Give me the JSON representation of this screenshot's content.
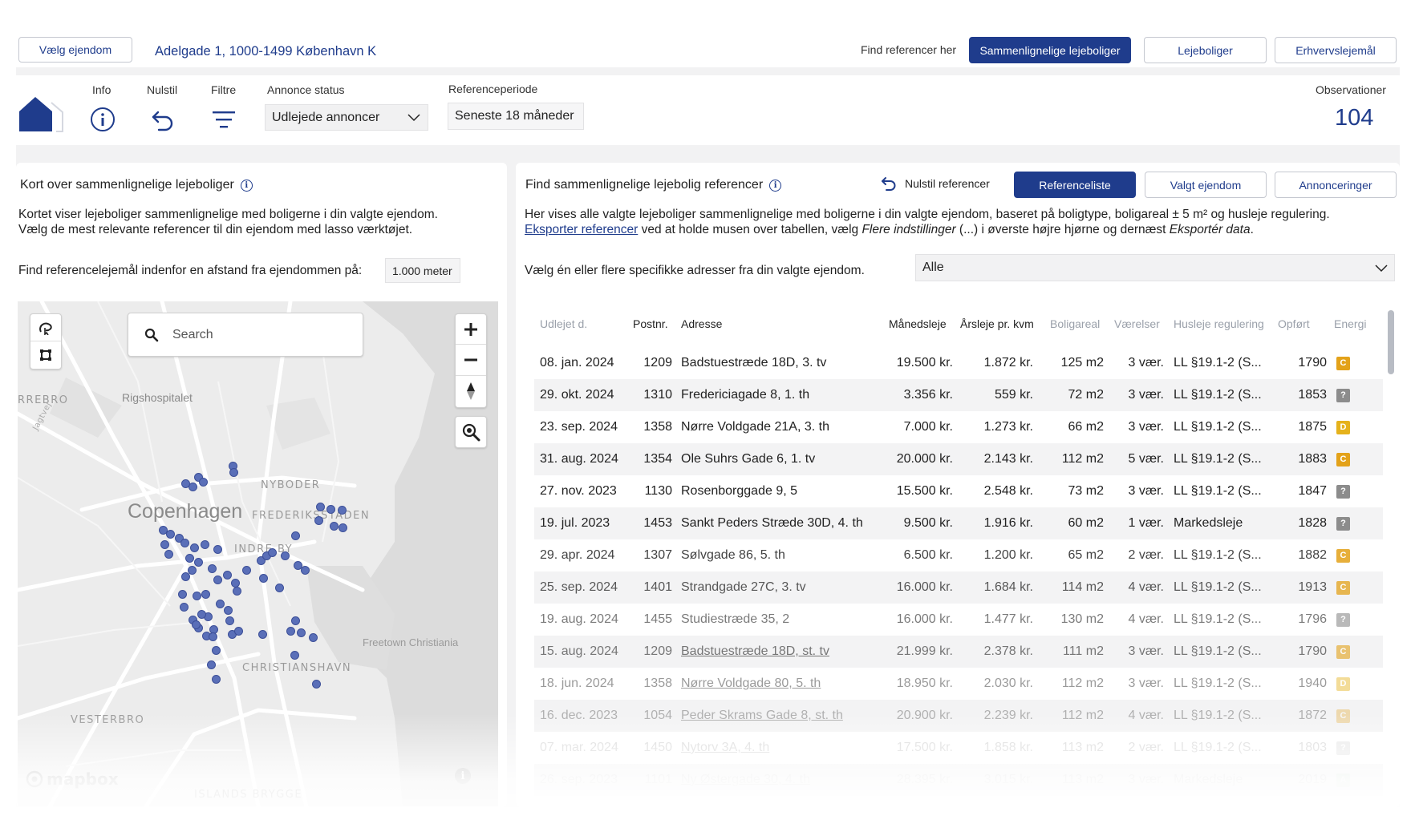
{
  "header": {
    "choose_property_label": "Vælg ejendom",
    "address": "Adelgade 1, 1000-1499 København K",
    "find_refs_label": "Find referencer her",
    "tabs": [
      "Sammenlignelige lejeboliger",
      "Lejeboliger",
      "Erhvervslejemål"
    ]
  },
  "toolbar": {
    "info_label": "Info",
    "reset_label": "Nulstil",
    "filters_label": "Filtre",
    "ad_status_label": "Annonce status",
    "ad_status_value": "Udlejede annoncer",
    "period_label": "Referenceperiode",
    "period_value": "Seneste 18 måneder",
    "observations_label": "Observationer",
    "observations_value": "104"
  },
  "map_panel": {
    "title": "Kort over sammenlignelige lejeboliger",
    "desc1": "Kortet viser lejeboliger sammenlignelige med boligerne i din valgte ejendom.",
    "desc2": "Vælg de mest relevante referencer til din ejendom med lasso værktøjet.",
    "distance_label": "Find referencelejemål indenfor en afstand fra ejendommen på:",
    "distance_value": "1.000 meter",
    "search_placeholder": "Search",
    "labels": {
      "rigshospitalet": "Rigshospitalet",
      "rrebro": "RREBRO",
      "jagtvej": "Jagtvej",
      "copenhagen": "Copenhagen",
      "nyboder": "NYBODER",
      "frederiksstaden": "FREDERIKSSTADEN",
      "indre_by": "INDRE BY",
      "freetown": "Freetown Christiania",
      "christianshavn": "CHRISTIANSHAVN",
      "vesterbro": "VESTERBRO",
      "islands_brygge": "ISLANDS BRYGGE",
      "mapbox": "mapbox"
    }
  },
  "refs_panel": {
    "title": "Find sammenlignelige lejebolig referencer",
    "reset_refs_label": "Nulstil referencer",
    "tabs": [
      "Referenceliste",
      "Valgt ejendom",
      "Annonceringer"
    ],
    "desc_line1": "Her vises alle valgte lejeboliger sammenlignelige med boligerne i din valgte ejendom, baseret på boligtype, boligareal ± 5 m² og husleje regulering.",
    "export_link": "Eksporter referencer",
    "desc_line2_a": " ved at holde musen over tabellen, vælg ",
    "desc_line2_b": "Flere indstillinger",
    "desc_line2_c": " (...) i øverste højre hjørne og dernæst ",
    "desc_line2_d": "Eksportér data",
    "desc_line2_e": ".",
    "address_filter_label": "Vælg én eller flere specifikke adresser fra din valgte ejendom.",
    "address_filter_value": "Alle"
  },
  "table": {
    "columns": [
      "Udlejet d.",
      "Postnr.",
      "Adresse",
      "Månedsleje",
      "Årsleje pr. kvm",
      "Boligareal",
      "Værelser",
      "Husleje regulering",
      "Opført",
      "Energi"
    ],
    "rows": [
      {
        "date": "08. jan. 2024",
        "zip": "1209",
        "address": "Badstuestræde 18D, 3. tv",
        "monthly": "19.500 kr.",
        "yearly": "1.872 kr.",
        "area": "125 m2",
        "rooms": "3 vær.",
        "reg": "LL §19.1-2 (S...",
        "built": "1790",
        "energy": "C"
      },
      {
        "date": "29. okt. 2024",
        "zip": "1310",
        "address": "Fredericiagade 8, 1. th",
        "monthly": "3.356 kr.",
        "yearly": "559 kr.",
        "area": "72 m2",
        "rooms": "3 vær.",
        "reg": "LL §19.1-2 (S...",
        "built": "1853",
        "energy": "?"
      },
      {
        "date": "23. sep. 2024",
        "zip": "1358",
        "address": "Nørre Voldgade 21A, 3. th",
        "monthly": "7.000 kr.",
        "yearly": "1.273 kr.",
        "area": "66 m2",
        "rooms": "3 vær.",
        "reg": "LL §19.1-2 (S...",
        "built": "1875",
        "energy": "D"
      },
      {
        "date": "31. aug. 2024",
        "zip": "1354",
        "address": "Ole Suhrs Gade 6, 1. tv",
        "monthly": "20.000 kr.",
        "yearly": "2.143 kr.",
        "area": "112 m2",
        "rooms": "5 vær.",
        "reg": "LL §19.1-2 (S...",
        "built": "1883",
        "energy": "C"
      },
      {
        "date": "27. nov. 2023",
        "zip": "1130",
        "address": "Rosenborggade 9, 5",
        "monthly": "15.500 kr.",
        "yearly": "2.548 kr.",
        "area": "73 m2",
        "rooms": "3 vær.",
        "reg": "LL §19.1-2 (S...",
        "built": "1847",
        "energy": "?"
      },
      {
        "date": "19. jul. 2023",
        "zip": "1453",
        "address": "Sankt Peders Stræde 30D, 4. th",
        "monthly": "9.500 kr.",
        "yearly": "1.916 kr.",
        "area": "60 m2",
        "rooms": "1 vær.",
        "reg": "Markedsleje",
        "built": "1828",
        "energy": "?"
      },
      {
        "date": "29. apr. 2024",
        "zip": "1307",
        "address": "Sølvgade 86, 5. th",
        "monthly": "6.500 kr.",
        "yearly": "1.200 kr.",
        "area": "65 m2",
        "rooms": "2 vær.",
        "reg": "LL §19.1-2 (S...",
        "built": "1882",
        "energy": "C"
      },
      {
        "date": "25. sep. 2024",
        "zip": "1401",
        "address": "Strandgade 27C, 3. tv",
        "monthly": "16.000 kr.",
        "yearly": "1.684 kr.",
        "area": "114 m2",
        "rooms": "4 vær.",
        "reg": "LL §19.1-2 (S...",
        "built": "1913",
        "energy": "C"
      },
      {
        "date": "19. aug. 2024",
        "zip": "1455",
        "address": "Studiestræde 35, 2",
        "monthly": "16.000 kr.",
        "yearly": "1.477 kr.",
        "area": "130 m2",
        "rooms": "4 vær.",
        "reg": "LL §19.1-2 (S...",
        "built": "1796",
        "energy": "?"
      },
      {
        "date": "15. aug. 2024",
        "zip": "1209",
        "address": "Badstuestræde 18D, st. tv",
        "monthly": "21.999 kr.",
        "yearly": "2.378 kr.",
        "area": "111 m2",
        "rooms": "3 vær.",
        "reg": "LL §19.1-2 (S...",
        "built": "1790",
        "energy": "C"
      },
      {
        "date": "18. jun. 2024",
        "zip": "1358",
        "address": "Nørre Voldgade 80, 5. th",
        "monthly": "18.950 kr.",
        "yearly": "2.030 kr.",
        "area": "112 m2",
        "rooms": "3 vær.",
        "reg": "LL §19.1-2 (S...",
        "built": "1940",
        "energy": "D"
      },
      {
        "date": "16. dec. 2023",
        "zip": "1054",
        "address": "Peder Skrams Gade 8, st. th",
        "monthly": "20.900 kr.",
        "yearly": "2.239 kr.",
        "area": "112 m2",
        "rooms": "4 vær.",
        "reg": "LL §19.1-2 (S...",
        "built": "1872",
        "energy": "C"
      },
      {
        "date": "07. mar. 2024",
        "zip": "1450",
        "address": "Nytorv 3A, 4. th",
        "monthly": "17.500 kr.",
        "yearly": "1.858 kr.",
        "area": "113 m2",
        "rooms": "2 vær.",
        "reg": "LL §19.1-2 (S...",
        "built": "1803",
        "energy": "?"
      },
      {
        "date": "26. sep. 2023",
        "zip": "1101",
        "address": "Ny Østergade 30, 4. th",
        "monthly": "28.395 kr.",
        "yearly": "3.015 kr.",
        "area": "113 m2",
        "rooms": "3 vær.",
        "reg": "Markedsleje",
        "built": "2019",
        "energy": "A"
      }
    ]
  },
  "colors": {
    "brand": "#1f3c8c",
    "energy_c": "#e3a21a",
    "energy_d": "#e5b21c",
    "energy_a": "#4caf50",
    "energy_unknown": "#8c8c8c",
    "map_dot": "#5a6fb8"
  }
}
